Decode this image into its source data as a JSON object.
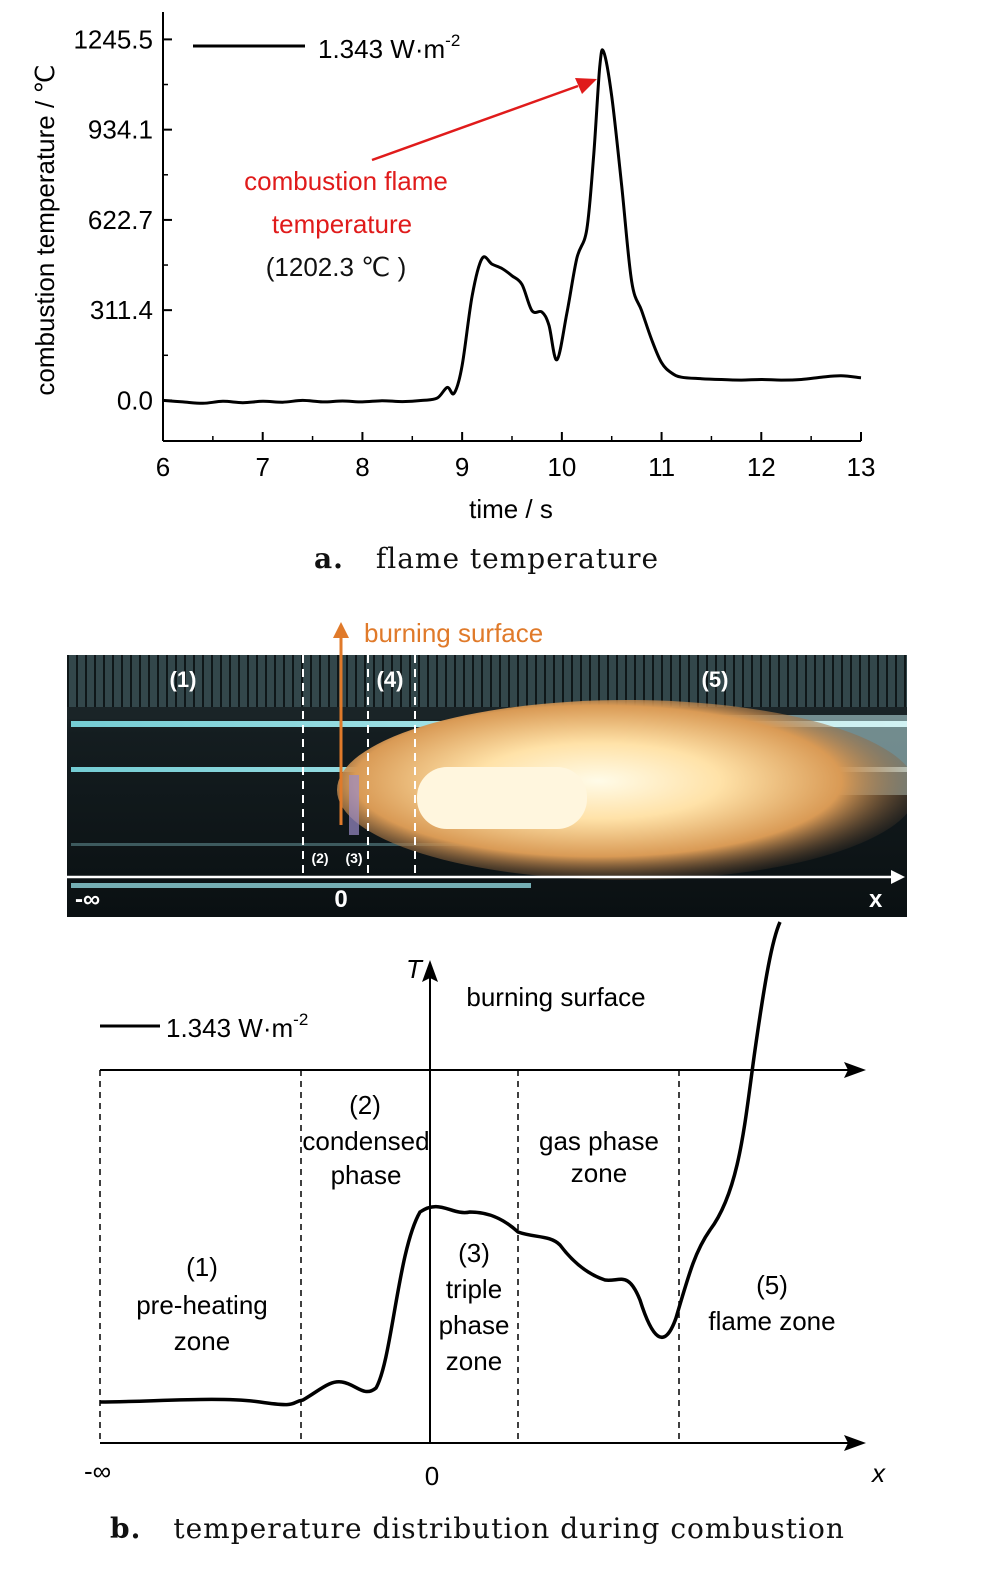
{
  "figure_a": {
    "caption_tag": "a.",
    "caption_text": "flame temperature",
    "legend_label": "1.343 W·m",
    "legend_exp": "-2",
    "annotation_line1": "combustion flame",
    "annotation_line2": "temperature",
    "annotation_line3": "(1202.3 ℃ )",
    "annotation_color": "#e01b1b"
  },
  "figure_b": {
    "caption_tag": "b.",
    "caption_text": "temperature distribution during combustion",
    "photo": {
      "arrow_label": "burning surface",
      "arrow_color": "#e07a2a",
      "zone_labels": [
        "(1)",
        "(4)",
        "(5)",
        "(2)",
        "(3)"
      ],
      "axis_origin": "0",
      "axis_neg_inf": "-∞",
      "axis_x": "x"
    },
    "diagram": {
      "legend_label": "1.343 W·m",
      "legend_exp": "-2",
      "t_axis_label": "T",
      "burning_surface_label": "burning surface",
      "x_axis_label": "x",
      "origin_label": "0",
      "neg_inf_label": "-∞",
      "zones": [
        {
          "number": "(1)",
          "lines": [
            "pre-heating",
            "zone"
          ]
        },
        {
          "number": "(2)",
          "lines": [
            "condensed",
            "phase"
          ]
        },
        {
          "number": "(3)",
          "lines": [
            "triple",
            "phase",
            "zone"
          ]
        },
        {
          "number": "",
          "lines": [
            "gas phase",
            "zone"
          ]
        },
        {
          "number": "(5)",
          "lines": [
            "flame zone"
          ]
        }
      ]
    }
  },
  "chart_data": [
    {
      "type": "line",
      "title": "",
      "xlabel": "time / s",
      "ylabel": "combustion temperature / ℃",
      "xlim": [
        6,
        13
      ],
      "ylim": [
        -140,
        1340
      ],
      "xticks": [
        6,
        7,
        8,
        9,
        10,
        11,
        12,
        13
      ],
      "yticks": [
        "0.0",
        "311.4",
        "622.7",
        "934.1",
        "1245.5"
      ],
      "grid": false,
      "legend_position": "top-left",
      "series": [
        {
          "name": "1.343 W·m-2",
          "color": "#000000",
          "points": [
            [
              6.0,
              0
            ],
            [
              6.2,
              -5
            ],
            [
              6.4,
              -10
            ],
            [
              6.6,
              -3
            ],
            [
              6.8,
              -8
            ],
            [
              7.0,
              -3
            ],
            [
              7.2,
              -6
            ],
            [
              7.4,
              0
            ],
            [
              7.6,
              -5
            ],
            [
              7.8,
              -2
            ],
            [
              8.0,
              -5
            ],
            [
              8.2,
              -1
            ],
            [
              8.4,
              -4
            ],
            [
              8.6,
              0
            ],
            [
              8.75,
              8
            ],
            [
              8.85,
              45
            ],
            [
              8.92,
              25
            ],
            [
              9.0,
              120
            ],
            [
              9.1,
              360
            ],
            [
              9.2,
              490
            ],
            [
              9.3,
              470
            ],
            [
              9.4,
              455
            ],
            [
              9.5,
              430
            ],
            [
              9.6,
              400
            ],
            [
              9.7,
              310
            ],
            [
              9.8,
              305
            ],
            [
              9.87,
              260
            ],
            [
              9.95,
              140
            ],
            [
              10.05,
              300
            ],
            [
              10.15,
              490
            ],
            [
              10.25,
              590
            ],
            [
              10.32,
              850
            ],
            [
              10.38,
              1150
            ],
            [
              10.42,
              1202.3
            ],
            [
              10.5,
              1050
            ],
            [
              10.6,
              740
            ],
            [
              10.7,
              410
            ],
            [
              10.8,
              310
            ],
            [
              10.9,
              210
            ],
            [
              11.0,
              130
            ],
            [
              11.1,
              95
            ],
            [
              11.2,
              80
            ],
            [
              11.4,
              75
            ],
            [
              11.6,
              72
            ],
            [
              11.8,
              70
            ],
            [
              12.0,
              72
            ],
            [
              12.2,
              70
            ],
            [
              12.4,
              72
            ],
            [
              12.6,
              80
            ],
            [
              12.8,
              85
            ],
            [
              13.0,
              78
            ]
          ]
        }
      ],
      "annotations": [
        {
          "text": "combustion flame temperature (1202.3 ℃ )",
          "x": 10.42,
          "y": 1202.3
        }
      ]
    }
  ]
}
